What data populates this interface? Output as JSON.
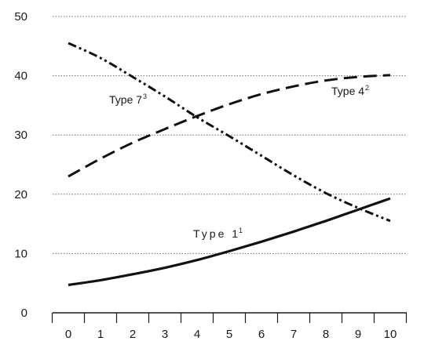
{
  "chart_data": {
    "type": "line",
    "title": "",
    "xlabel": "",
    "ylabel": "",
    "x": [
      0,
      1,
      2,
      3,
      4,
      5,
      6,
      7,
      8,
      9,
      10
    ],
    "x_tick_labels": [
      "0",
      "1",
      "2",
      "3",
      "4",
      "5",
      "6",
      "7",
      "8",
      "9",
      "10"
    ],
    "y_tick_labels": [
      "0",
      "10",
      "20",
      "30",
      "40",
      "50"
    ],
    "y_ticks": [
      0,
      10,
      20,
      30,
      40,
      50
    ],
    "xlim": [
      -0.5,
      10.5
    ],
    "ylim": [
      0,
      50
    ],
    "grid": "horizontal dotted",
    "legend": "none (inline labels)",
    "series": [
      {
        "name": "Type 1",
        "sup": "1",
        "style": "solid",
        "color": "#111111",
        "values": [
          4.7,
          5.5,
          6.5,
          7.6,
          8.9,
          10.4,
          12.0,
          13.7,
          15.5,
          17.4,
          19.3
        ]
      },
      {
        "name": "Type 4",
        "sup": "2",
        "style": "dashed",
        "color": "#111111",
        "values": [
          23.0,
          26.0,
          28.7,
          31.0,
          33.2,
          35.2,
          36.9,
          38.2,
          39.2,
          39.8,
          40.1
        ]
      },
      {
        "name": "Type 7",
        "sup": "3",
        "style": "dash-dot-dot",
        "color": "#111111",
        "values": [
          45.5,
          43.0,
          39.8,
          36.5,
          33.0,
          29.8,
          26.5,
          23.2,
          20.2,
          17.7,
          15.5
        ]
      }
    ]
  }
}
